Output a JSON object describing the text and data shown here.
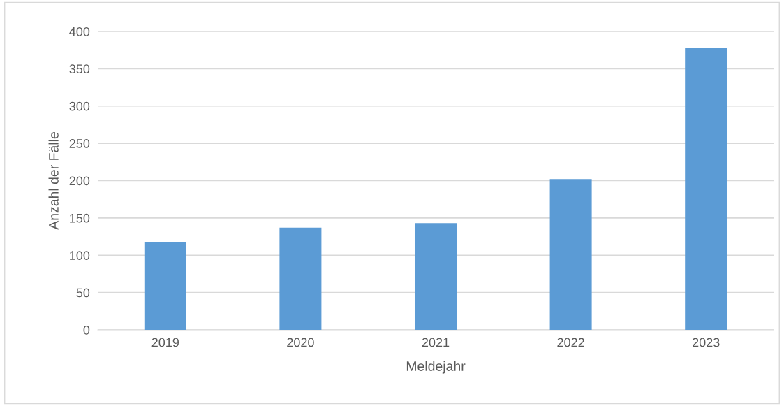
{
  "chart_data": {
    "type": "bar",
    "xlabel": "Meldejahr",
    "ylabel": "Anzahl der Fälle",
    "categories": [
      "2019",
      "2020",
      "2021",
      "2022",
      "2023"
    ],
    "values": [
      118,
      137,
      143,
      202,
      378
    ],
    "color": "#5b9bd5",
    "ylim": [
      0,
      400
    ],
    "yticks": [
      0,
      50,
      100,
      150,
      200,
      250,
      300,
      350,
      400
    ],
    "grid": "y",
    "legend": false
  }
}
